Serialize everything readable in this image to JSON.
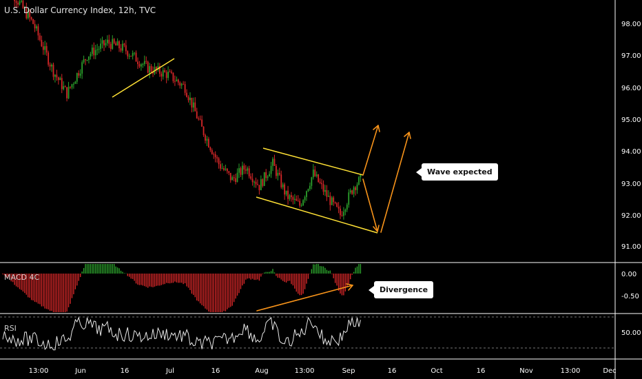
{
  "header": {
    "symbol": "U.S. Dollar Currency Index, 12h, TVC"
  },
  "indicators": {
    "macd_label": "MACD 4C",
    "rsi_label": "RSI"
  },
  "annotations": {
    "wave_expected": "Wave expected",
    "divergence": "Divergence"
  },
  "colors": {
    "up": "#2ca02c",
    "down": "#d62728",
    "trendline": "#ffe135",
    "arrow": "#f7931a",
    "rsi_line": "#e8e8e8"
  },
  "chart_data": [
    {
      "type": "candlestick",
      "title": "U.S. Dollar Currency Index, 12h, TVC",
      "ylim": [
        90.7,
        98.9
      ],
      "y_ticks": [
        "98.00",
        "97.00",
        "96.00",
        "95.00",
        "94.00",
        "93.00",
        "92.00",
        "91.00"
      ],
      "x_ticks": [
        "13:00",
        "Jun",
        "16",
        "Jul",
        "16",
        "Aug",
        "13:00",
        "Sep",
        "16",
        "Oct",
        "16",
        "Nov",
        "13:00",
        "Dec"
      ],
      "approx_close_path": [
        [
          0,
          99.4
        ],
        [
          18,
          98.0
        ],
        [
          30,
          96.5
        ],
        [
          38,
          95.8
        ],
        [
          50,
          97.0
        ],
        [
          62,
          97.4
        ],
        [
          72,
          97.2
        ],
        [
          86,
          96.6
        ],
        [
          98,
          96.4
        ],
        [
          108,
          96.0
        ],
        [
          118,
          94.7
        ],
        [
          128,
          93.6
        ],
        [
          136,
          93.1
        ],
        [
          144,
          93.5
        ],
        [
          152,
          92.9
        ],
        [
          160,
          93.6
        ],
        [
          168,
          92.6
        ],
        [
          176,
          92.3
        ],
        [
          184,
          93.3
        ],
        [
          192,
          92.6
        ],
        [
          200,
          92.0
        ],
        [
          208,
          92.9
        ],
        [
          212,
          93.1
        ]
      ]
    },
    {
      "type": "histogram",
      "title": "MACD 4C",
      "y_ticks": [
        "0.00",
        "-0.50"
      ]
    },
    {
      "type": "line",
      "title": "RSI",
      "y_ticks": [
        "50.00"
      ]
    }
  ]
}
